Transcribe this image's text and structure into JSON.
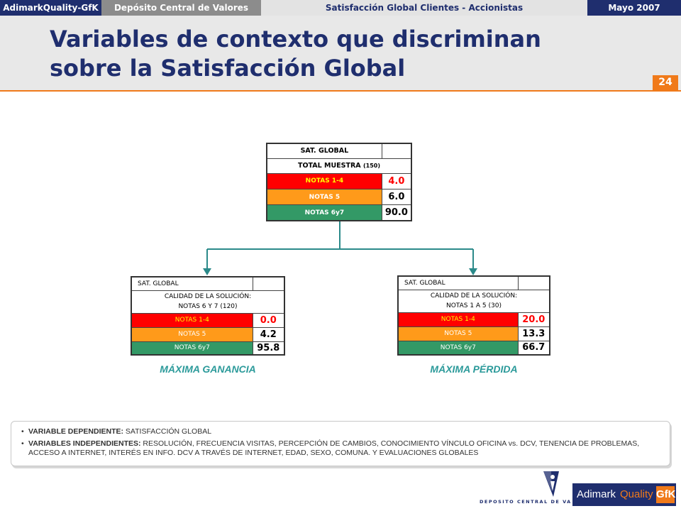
{
  "header": {
    "brand": "AdimarkQuality-GfK",
    "client": "Depósito Central de Valores",
    "study": "Satisfacción Global Clientes - Accionistas",
    "date": "Mayo 2007"
  },
  "title": {
    "line1": "Variables de contexto que discriminan",
    "line2": "sobre la Satisfacción Global",
    "page_number": "24"
  },
  "top_table": {
    "header": "SAT. GLOBAL",
    "subheader": "TOTAL MUESTRA",
    "subheader_n": "(150)",
    "rows": [
      {
        "label": "NOTAS 1-4",
        "value": "4.0"
      },
      {
        "label": "NOTAS 5",
        "value": "6.0"
      },
      {
        "label": "NOTAS 6y7",
        "value": "90.0"
      }
    ]
  },
  "left_table": {
    "header": "SAT. GLOBAL",
    "sub1": "CALIDAD DE LA SOLUCIÓN:",
    "sub2": "NOTAS 6 Y 7 (120)",
    "rows": [
      {
        "label": "NOTAS 1-4",
        "value": "0.0"
      },
      {
        "label": "NOTAS 5",
        "value": "4.2"
      },
      {
        "label": "NOTAS 6y7",
        "value": "95.8"
      }
    ],
    "caption": "MÁXIMA GANANCIA"
  },
  "right_table": {
    "header": "SAT. GLOBAL",
    "sub1": "CALIDAD DE LA SOLUCIÓN:",
    "sub2": "NOTAS 1 A 5 (30)",
    "rows": [
      {
        "label": "NOTAS 1-4",
        "value": "20.0"
      },
      {
        "label": "NOTAS 5",
        "value": "13.3"
      },
      {
        "label": "NOTAS 6y7",
        "value": "66.7"
      }
    ],
    "caption": "MÁXIMA PÉRDIDA"
  },
  "notes": {
    "dep_key": "VARIABLE DEPENDIENTE:",
    "dep_value": " SATISFACCIÓN GLOBAL",
    "indep_key": "VARIABLES INDEPENDIENTES:",
    "indep_value": " RESOLUCIÓN, FRECUENCIA VISITAS, PERCEPCIÓN DE CAMBIOS, CONOCIMIENTO VÍNCULO OFICINA vs. DCV, TENENCIA DE PROBLEMAS, ACCESO A INTERNET, INTERÉS EN INFO. DCV A TRAVÉS DE INTERNET, EDAD, SEXO, COMUNA. Y EVALUACIONES GLOBALES"
  },
  "logos": {
    "dcv_text": "DEPOSITO CENTRAL DE VALORES",
    "gfk_adimark": "Adimark",
    "gfk_quality": "Quality",
    "gfk_box": "GfK"
  },
  "colors": {
    "navy": "#1f2e6e",
    "orange": "#f07a1a",
    "red": "#ff0000",
    "amber": "#ff9a1a",
    "green": "#339966",
    "teal": "#2b9a9a"
  }
}
